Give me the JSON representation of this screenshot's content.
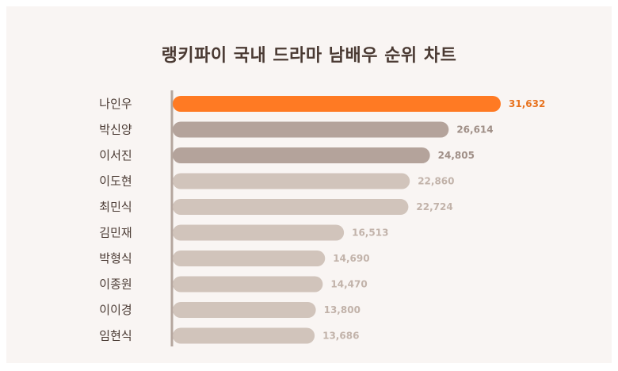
{
  "chart_data": {
    "type": "bar",
    "orientation": "horizontal",
    "title": "랭키파이 국내 드라마 남배우 순위 차트",
    "categories": [
      "나인우",
      "박신양",
      "이서진",
      "이도현",
      "최민식",
      "김민재",
      "박형식",
      "이종원",
      "이이경",
      "임현식"
    ],
    "values": [
      31632,
      26614,
      24805,
      22860,
      22724,
      16513,
      14690,
      14470,
      13800,
      13686
    ],
    "value_labels": [
      "31,632",
      "26,614",
      "24,805",
      "22,860",
      "22,724",
      "16,513",
      "14,690",
      "14,470",
      "13,800",
      "13,686"
    ],
    "xlim": [
      0,
      31632
    ],
    "grid": false,
    "legend": "none"
  },
  "colors": {
    "rank1_bar": "#ff7a23",
    "rank1_label": "#e8731f",
    "rank2_3_bar": "#b4a39b",
    "rank2_3_label": "#a08f87",
    "rest_bar": "#d1c4bb",
    "rest_label": "#c2b3aa",
    "axis": "#b5a69e",
    "background": "#f9f5f3"
  }
}
